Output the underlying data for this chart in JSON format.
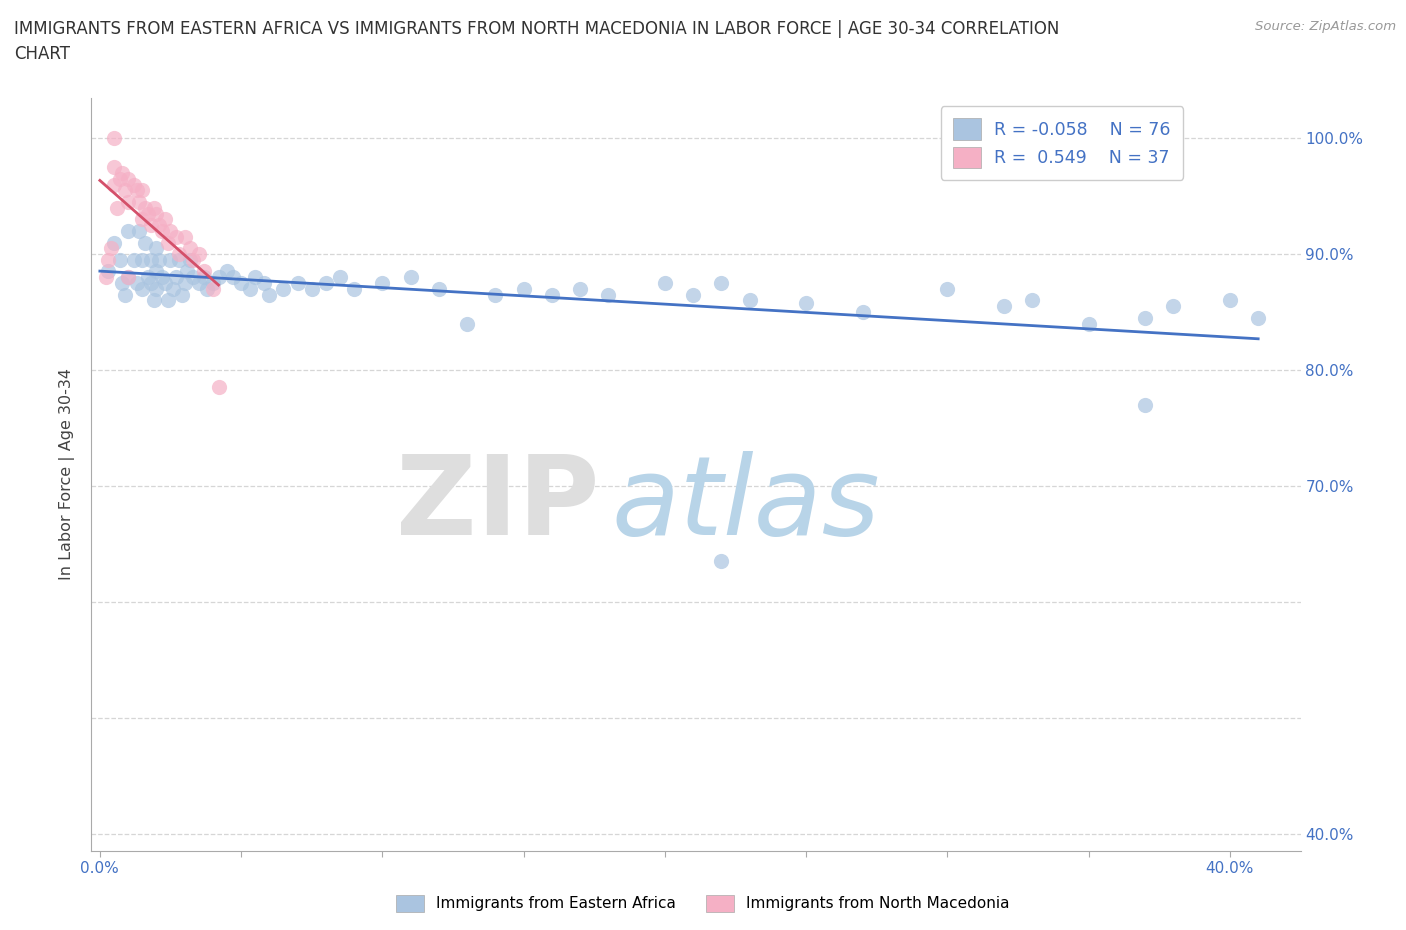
{
  "title_line1": "IMMIGRANTS FROM EASTERN AFRICA VS IMMIGRANTS FROM NORTH MACEDONIA IN LABOR FORCE | AGE 30-34 CORRELATION",
  "title_line2": "CHART",
  "source_text": "Source: ZipAtlas.com",
  "ylabel": "In Labor Force | Age 30-34",
  "series1_label": "Immigrants from Eastern Africa",
  "series2_label": "Immigrants from North Macedonia",
  "series1_fill_color": "#aac4e0",
  "series2_fill_color": "#f5b0c5",
  "series1_line_color": "#4472c4",
  "series2_line_color": "#d4506a",
  "series1_R": -0.058,
  "series1_N": 76,
  "series2_R": 0.549,
  "series2_N": 37,
  "legend_color": "#4472c4",
  "xlim": [
    -0.003,
    0.425
  ],
  "ylim": [
    0.385,
    1.035
  ],
  "x_ticks": [
    0.0,
    0.05,
    0.1,
    0.15,
    0.2,
    0.25,
    0.3,
    0.35,
    0.4
  ],
  "y_ticks": [
    0.4,
    0.5,
    0.6,
    0.7,
    0.8,
    0.9,
    1.0
  ],
  "y_tick_labels": [
    "40.0%",
    "",
    "",
    "70.0%",
    "80.0%",
    "90.0%",
    "100.0%"
  ],
  "x_tick_labels": [
    "0.0%",
    "",
    "",
    "",
    "",
    "",
    "",
    "",
    "40.0%"
  ],
  "grid_color": "#cccccc",
  "background_color": "#ffffff",
  "title_fontsize": 12,
  "axis_tick_color": "#4472c4",
  "watermark_zip_color": "#dedede",
  "watermark_atlas_color": "#b8d4e8",
  "series1_x": [
    0.003,
    0.005,
    0.007,
    0.008,
    0.009,
    0.01,
    0.01,
    0.012,
    0.013,
    0.014,
    0.015,
    0.015,
    0.016,
    0.017,
    0.018,
    0.018,
    0.019,
    0.02,
    0.02,
    0.02,
    0.021,
    0.022,
    0.023,
    0.024,
    0.025,
    0.026,
    0.027,
    0.028,
    0.029,
    0.03,
    0.031,
    0.032,
    0.033,
    0.035,
    0.037,
    0.038,
    0.04,
    0.042,
    0.045,
    0.047,
    0.05,
    0.053,
    0.055,
    0.058,
    0.06,
    0.065,
    0.07,
    0.075,
    0.08,
    0.085,
    0.09,
    0.1,
    0.11,
    0.12,
    0.13,
    0.14,
    0.15,
    0.16,
    0.17,
    0.18,
    0.2,
    0.21,
    0.22,
    0.23,
    0.25,
    0.27,
    0.3,
    0.32,
    0.33,
    0.35,
    0.37,
    0.38,
    0.4,
    0.41,
    0.22,
    0.37
  ],
  "series1_y": [
    0.885,
    0.91,
    0.895,
    0.875,
    0.865,
    0.92,
    0.88,
    0.895,
    0.875,
    0.92,
    0.895,
    0.87,
    0.91,
    0.88,
    0.895,
    0.875,
    0.86,
    0.905,
    0.885,
    0.87,
    0.895,
    0.88,
    0.875,
    0.86,
    0.895,
    0.87,
    0.88,
    0.895,
    0.865,
    0.875,
    0.885,
    0.895,
    0.88,
    0.875,
    0.88,
    0.87,
    0.875,
    0.88,
    0.885,
    0.88,
    0.875,
    0.87,
    0.88,
    0.875,
    0.865,
    0.87,
    0.875,
    0.87,
    0.875,
    0.88,
    0.87,
    0.875,
    0.88,
    0.87,
    0.84,
    0.865,
    0.87,
    0.865,
    0.87,
    0.865,
    0.875,
    0.865,
    0.875,
    0.86,
    0.858,
    0.85,
    0.87,
    0.855,
    0.86,
    0.84,
    0.845,
    0.855,
    0.86,
    0.845,
    0.635,
    0.77
  ],
  "series2_x": [
    0.002,
    0.003,
    0.004,
    0.005,
    0.005,
    0.005,
    0.006,
    0.007,
    0.008,
    0.009,
    0.01,
    0.01,
    0.01,
    0.012,
    0.013,
    0.014,
    0.015,
    0.015,
    0.016,
    0.017,
    0.018,
    0.019,
    0.02,
    0.021,
    0.022,
    0.023,
    0.024,
    0.025,
    0.027,
    0.028,
    0.03,
    0.032,
    0.033,
    0.035,
    0.037,
    0.04,
    0.042
  ],
  "series2_y": [
    0.88,
    0.895,
    0.905,
    1.0,
    0.975,
    0.96,
    0.94,
    0.965,
    0.97,
    0.955,
    0.965,
    0.945,
    0.88,
    0.96,
    0.955,
    0.945,
    0.93,
    0.955,
    0.94,
    0.935,
    0.925,
    0.94,
    0.935,
    0.925,
    0.92,
    0.93,
    0.91,
    0.92,
    0.915,
    0.9,
    0.915,
    0.905,
    0.895,
    0.9,
    0.885,
    0.87,
    0.785
  ]
}
